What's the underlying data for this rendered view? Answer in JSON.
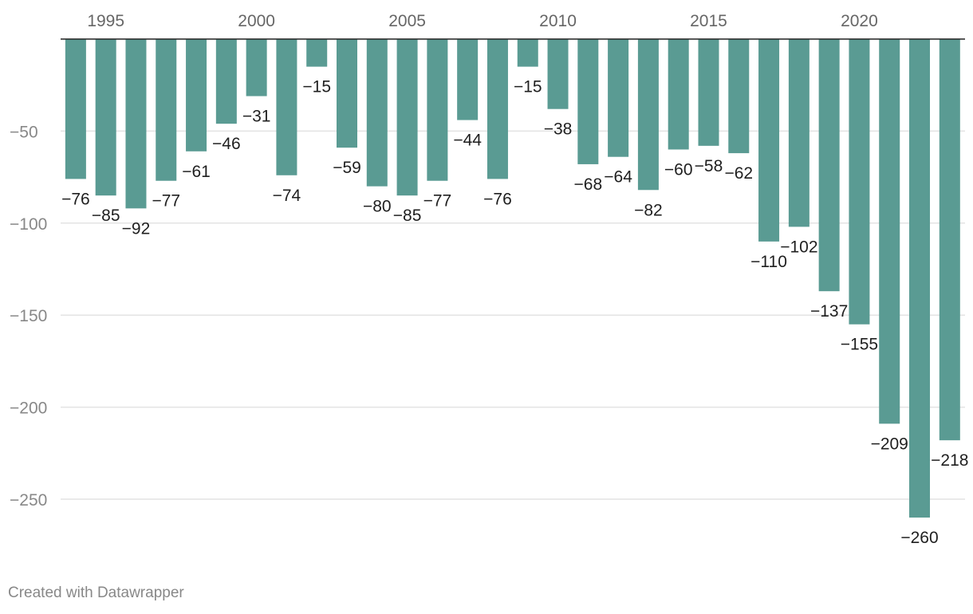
{
  "chart_data": {
    "type": "bar",
    "title": "",
    "xlabel": "",
    "ylabel": "",
    "categories": [
      "1994",
      "1995",
      "1996",
      "1997",
      "1998",
      "1999",
      "2000",
      "2001",
      "2002",
      "2003",
      "2004",
      "2005",
      "2006",
      "2007",
      "2008",
      "2009",
      "2010",
      "2011",
      "2012",
      "2013",
      "2014",
      "2015",
      "2016",
      "2017",
      "2018",
      "2019",
      "2020",
      "2021",
      "2022",
      "2023"
    ],
    "values": [
      -76,
      -85,
      -92,
      -77,
      -61,
      -46,
      -31,
      -74,
      -15,
      -59,
      -80,
      -85,
      -77,
      -44,
      -76,
      -15,
      -38,
      -68,
      -64,
      -82,
      -60,
      -58,
      -62,
      -110,
      -102,
      -137,
      -155,
      -209,
      -260,
      -218
    ],
    "value_labels": [
      "−76",
      "−85",
      "−92",
      "−77",
      "−61",
      "−46",
      "−31",
      "−74",
      "−15",
      "−59",
      "−80",
      "−85",
      "−77",
      "−44",
      "−76",
      "−15",
      "−38",
      "−68",
      "−64",
      "−82",
      "−60",
      "−58",
      "−62",
      "−110",
      "−102",
      "−137",
      "−155",
      "−209",
      "−260",
      "−218"
    ],
    "x_tick_labels": [
      {
        "category": "1995",
        "label": "1995"
      },
      {
        "category": "2000",
        "label": "2000"
      },
      {
        "category": "2005",
        "label": "2005"
      },
      {
        "category": "2010",
        "label": "2010"
      },
      {
        "category": "2015",
        "label": "2015"
      },
      {
        "category": "2020",
        "label": "2020"
      }
    ],
    "y_ticks": [
      {
        "value": -50,
        "label": "−50"
      },
      {
        "value": -100,
        "label": "−100"
      },
      {
        "value": -150,
        "label": "−150"
      },
      {
        "value": -200,
        "label": "−200"
      },
      {
        "value": -250,
        "label": "−250"
      }
    ],
    "ylim": [
      -270,
      0
    ],
    "grid": true,
    "x_axis_position": "top",
    "bar_color": "#5a9b93"
  },
  "footer": {
    "credit": "Created with Datawrapper"
  }
}
